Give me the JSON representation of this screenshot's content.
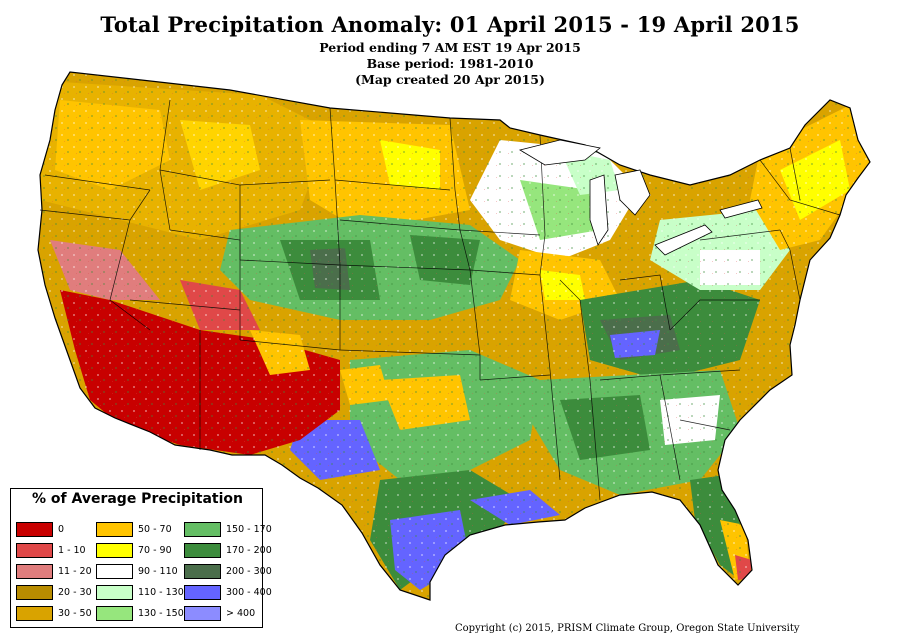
{
  "title": "Total Precipitation Anomaly: 01 April 2015 - 19 April 2015",
  "subtitle_lines": [
    "Period ending 7 AM EST 19 Apr 2015",
    "Base period: 1981-2010",
    "(Map created 20 Apr 2015)"
  ],
  "legend": {
    "title": "% of Average Precipitation",
    "items": [
      {
        "label": "0",
        "color": "#c80000"
      },
      {
        "label": "1 - 10",
        "color": "#e04848"
      },
      {
        "label": "11 - 20",
        "color": "#e07d7d"
      },
      {
        "label": "20 - 30",
        "color": "#b88c00"
      },
      {
        "label": "30 - 50",
        "color": "#d9a300"
      },
      {
        "label": "50 - 70",
        "color": "#ffc400"
      },
      {
        "label": "70 - 90",
        "color": "#ffff00"
      },
      {
        "label": "90 - 110",
        "color": "#ffffff"
      },
      {
        "label": "110 - 130",
        "color": "#c8ffc8"
      },
      {
        "label": "130 - 150",
        "color": "#96e67d"
      },
      {
        "label": "150 - 170",
        "color": "#64be64"
      },
      {
        "label": "170 - 200",
        "color": "#3c8c3c"
      },
      {
        "label": "200 - 300",
        "color": "#4b6e4b"
      },
      {
        "label": "300 - 400",
        "color": "#6464ff"
      },
      {
        "label": "> 400",
        "color": "#8c8cff"
      }
    ]
  },
  "copyright": "Copyright (c) 2015, PRISM Climate Group, Oregon State University"
}
